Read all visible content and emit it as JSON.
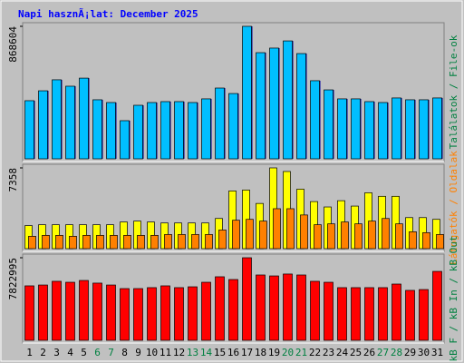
{
  "chart_data": [
    {
      "type": "bar",
      "title": "Napi hasznÃ¡lat: December 2025",
      "ylabel": "Találatok / File-ok",
      "ylim": [
        0,
        868604
      ],
      "yticks": [
        868604
      ],
      "series": [
        {
          "name": "Találatok",
          "color": "#00bfff",
          "values": [
            381000,
            446000,
            518000,
            476000,
            529000,
            387000,
            369000,
            250000,
            351000,
            369000,
            375000,
            375000,
            369000,
            393000,
            464000,
            428000,
            868604,
            696000,
            726000,
            773000,
            690000,
            512000,
            452000,
            393000,
            393000,
            375000,
            369000,
            399000,
            387000,
            387000,
            399000
          ]
        }
      ]
    },
    {
      "type": "bar",
      "ylabel": "Látogatók / Oldalak",
      "ylim": [
        0,
        7358
      ],
      "yticks": [
        7358
      ],
      "series": [
        {
          "name": "Látogatók",
          "color": "#ffff00",
          "values": [
            2100,
            2180,
            2180,
            2180,
            2180,
            2180,
            2180,
            2430,
            2510,
            2430,
            2340,
            2340,
            2340,
            2340,
            2750,
            5260,
            5340,
            4120,
            7358,
            7030,
            5420,
            4290,
            3800,
            4370,
            3880,
            5090,
            4770,
            4770,
            2830,
            2830,
            2670
          ]
        },
        {
          "name": "Oldalak",
          "color": "#ff8000",
          "values": [
            1130,
            1210,
            1210,
            1130,
            1210,
            1210,
            1210,
            1210,
            1210,
            1210,
            1290,
            1290,
            1290,
            1290,
            1700,
            2590,
            2670,
            2510,
            3640,
            3640,
            3070,
            2180,
            2260,
            2430,
            2260,
            2510,
            2750,
            2260,
            1540,
            1460,
            1290
          ]
        }
      ]
    },
    {
      "type": "bar",
      "ylabel": "kB F / kB In / kB Out",
      "ylim": [
        0,
        7822995
      ],
      "yticks": [
        7822995
      ],
      "categories": [
        "1",
        "2",
        "3",
        "4",
        "5",
        "6",
        "7",
        "8",
        "9",
        "10",
        "11",
        "12",
        "13",
        "14",
        "15",
        "16",
        "17",
        "18",
        "19",
        "20",
        "21",
        "22",
        "23",
        "24",
        "25",
        "26",
        "27",
        "28",
        "29",
        "30",
        "31"
      ],
      "category_colors": [
        "#000",
        "#000",
        "#000",
        "#000",
        "#000",
        "#008040",
        "#008040",
        "#000",
        "#000",
        "#000",
        "#000",
        "#000",
        "#008040",
        "#008040",
        "#000",
        "#000",
        "#000",
        "#000",
        "#000",
        "#008040",
        "#008040",
        "#000",
        "#000",
        "#000",
        "#000",
        "#000",
        "#008040",
        "#008040",
        "#000",
        "#000",
        "#000"
      ],
      "series": [
        {
          "name": "kB F",
          "color": "#ff0000",
          "values": [
            5160000,
            5240000,
            5590000,
            5500000,
            5670000,
            5420000,
            5240000,
            4900000,
            4900000,
            4990000,
            5160000,
            4990000,
            5070000,
            5500000,
            6020000,
            5760000,
            7822995,
            6190000,
            6100000,
            6280000,
            6190000,
            5590000,
            5500000,
            4990000,
            4990000,
            4990000,
            4990000,
            5330000,
            4730000,
            4810000,
            6530000
          ]
        }
      ]
    }
  ]
}
